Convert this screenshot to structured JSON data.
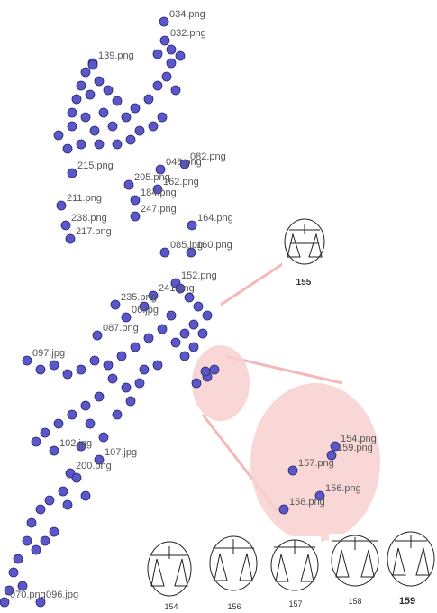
{
  "chart_data": {
    "type": "scatter",
    "xlim": [
      0,
      485
    ],
    "ylim": [
      680,
      0
    ],
    "series": [
      {
        "color": "#5b57c9",
        "x": [
          182,
          183,
          103,
          205,
          178,
          80,
          143,
          175,
          68,
          150,
          150,
          73,
          78,
          213,
          183,
          212,
          195,
          170,
          128,
          140,
          108,
          30,
          60,
          110,
          78,
          5,
          45,
          372,
          368,
          325,
          355,
          315,
          95,
          103,
          90,
          110,
          100,
          85,
          120,
          130,
          115,
          95,
          80,
          105,
          125,
          140,
          150,
          165,
          175,
          185,
          190,
          195,
          180,
          170,
          155,
          145,
          130,
          110,
          90,
          75,
          65,
          80,
          175,
          190,
          200,
          200,
          210,
          220,
          230,
          215,
          205,
          195,
          180,
          165,
          150,
          135,
          120,
          105,
          90,
          75,
          60,
          45,
          125,
          140,
          155,
          110,
          95,
          80,
          65,
          50,
          40,
          100,
          130,
          145,
          115,
          90,
          85,
          70,
          55,
          45,
          35,
          75,
          95,
          30,
          40,
          20,
          15,
          50,
          60,
          25,
          10,
          205,
          215,
          175,
          160,
          190,
          160,
          225,
          218,
          230,
          238,
          228
        ],
        "y": [
          24,
          45,
          70,
          182,
          188,
          192,
          205,
          210,
          228,
          222,
          240,
          250,
          265,
          250,
          280,
          280,
          314,
          328,
          338,
          352,
          372,
          400,
          500,
          510,
          525,
          668,
          668,
          495,
          505,
          522,
          550,
          565,
          80,
          72,
          95,
          90,
          105,
          110,
          100,
          112,
          125,
          130,
          140,
          145,
          140,
          130,
          120,
          110,
          95,
          85,
          70,
          100,
          130,
          140,
          145,
          155,
          160,
          160,
          160,
          165,
          150,
          125,
          60,
          55,
          62,
          320,
          330,
          340,
          350,
          360,
          370,
          380,
          365,
          375,
          385,
          395,
          405,
          400,
          410,
          415,
          405,
          410,
          420,
          430,
          425,
          440,
          450,
          460,
          470,
          480,
          490,
          470,
          460,
          445,
          485,
          495,
          530,
          545,
          555,
          565,
          580,
          560,
          550,
          600,
          610,
          620,
          635,
          600,
          590,
          650,
          655,
          395,
          385,
          405,
          410,
          350,
          340,
          370,
          425,
          418,
          410,
          412
        ],
        "labels": [
          "034.png",
          "032.png",
          "139.png",
          "082.png",
          "048.png",
          "215.png",
          "205.png",
          "162.png",
          "211.png",
          "184.png",
          "247.png",
          "238.png",
          "217.png",
          "164.png",
          "085.jpg",
          "160.png",
          "152.png",
          "241.png",
          "235.png",
          "06.jpg",
          "087.png",
          "097.jpg",
          "102.jpg",
          "107.jpg",
          "200.png",
          "070.png",
          "096.jpg",
          "154.png",
          "159.png",
          "157.png",
          "156.png",
          "158.png",
          null,
          null,
          null,
          null,
          null,
          null,
          null,
          null,
          null,
          null,
          null,
          null,
          null,
          null,
          null,
          null,
          null,
          null,
          null,
          null,
          null,
          null,
          null,
          null,
          null,
          null,
          null,
          null,
          null,
          null,
          null,
          null,
          null,
          null,
          null,
          null,
          null,
          null,
          null,
          null,
          null,
          null,
          null,
          null,
          null,
          null,
          null,
          null,
          null,
          null,
          null,
          null,
          null,
          null,
          null,
          null,
          null,
          null,
          null,
          null,
          null,
          null,
          null,
          null,
          null,
          null,
          null,
          null,
          null,
          null,
          null,
          null,
          null,
          null,
          null,
          null,
          null,
          null,
          null,
          null,
          null,
          null,
          null,
          null,
          null,
          null,
          null,
          null,
          null,
          null
        ]
      }
    ],
    "thumbnails": [
      "155",
      "154",
      "156",
      "157",
      "158",
      "159"
    ]
  }
}
